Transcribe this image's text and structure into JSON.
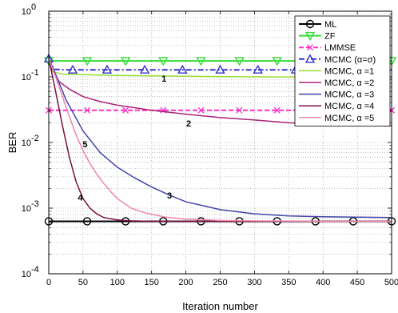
{
  "chart_data": {
    "type": "line",
    "title": "",
    "xlabel": "Iteration number",
    "ylabel": "BER",
    "xlim": [
      0,
      500
    ],
    "ylim": [
      0.0001,
      1
    ],
    "yscale": "log",
    "grid": true,
    "legend_position": "top-right",
    "x_ticks": [
      0,
      50,
      100,
      150,
      200,
      250,
      300,
      350,
      400,
      450,
      500
    ],
    "x_tick_labels": [
      "0",
      "50",
      "100",
      "150",
      "200",
      "250",
      "300",
      "350",
      "400",
      "450",
      "500"
    ],
    "y_ticks": [
      0.0001,
      0.001,
      0.01,
      0.1,
      1
    ],
    "y_tick_labels": [
      {
        "base": "10",
        "exp": "-4"
      },
      {
        "base": "10",
        "exp": "-3"
      },
      {
        "base": "10",
        "exp": "-2"
      },
      {
        "base": "10",
        "exp": "-1"
      },
      {
        "base": "10",
        "exp": "0"
      }
    ],
    "series": [
      {
        "name": "ML",
        "color": "#000000",
        "marker": "circle",
        "dash": "solid",
        "x": [
          0,
          500
        ],
        "y": [
          0.00063,
          0.00063
        ],
        "marker_x": [
          0,
          56,
          112,
          167,
          222,
          278,
          333,
          389,
          444,
          500
        ]
      },
      {
        "name": "ZF",
        "color": "#33dd33",
        "marker": "triangle-down",
        "dash": "solid",
        "x": [
          0,
          500
        ],
        "y": [
          0.175,
          0.175
        ],
        "marker_x": [
          0,
          56,
          112,
          167,
          222,
          278,
          333,
          389,
          444,
          500
        ]
      },
      {
        "name": "LMMSE",
        "color": "#ff33cc",
        "marker": "x",
        "dash": "dashed",
        "x": [
          0,
          500
        ],
        "y": [
          0.031,
          0.031
        ],
        "marker_x": [
          0,
          56,
          112,
          167,
          222,
          278,
          333,
          389,
          444,
          500
        ]
      },
      {
        "name": "MCMC (α=σ)",
        "color": "#3333cc",
        "marker": "triangle-up",
        "dash": "dashdot",
        "x": [
          0,
          8,
          25,
          500
        ],
        "y": [
          0.19,
          0.13,
          0.128,
          0.128
        ],
        "marker_x": [
          0,
          35,
          85,
          140,
          195,
          250,
          305,
          360,
          415,
          470
        ]
      },
      {
        "name": "MCMC, α =1",
        "color": "#99dd33",
        "marker": "none",
        "dash": "solid",
        "x": [
          0,
          5,
          20,
          50,
          100,
          200,
          300,
          400,
          500
        ],
        "y": [
          0.19,
          0.12,
          0.11,
          0.108,
          0.105,
          0.102,
          0.1,
          0.099,
          0.098
        ]
      },
      {
        "name": "MCMC, α =2",
        "color": "#aa2277",
        "marker": "none",
        "dash": "solid",
        "x": [
          0,
          5,
          15,
          30,
          50,
          75,
          100,
          150,
          200,
          250,
          300,
          350,
          400,
          450,
          500
        ],
        "y": [
          0.19,
          0.13,
          0.085,
          0.065,
          0.05,
          0.042,
          0.037,
          0.031,
          0.027,
          0.024,
          0.022,
          0.02,
          0.019,
          0.0185,
          0.018
        ]
      },
      {
        "name": "MCMC, α =3",
        "color": "#4444aa",
        "marker": "none",
        "dash": "solid",
        "x": [
          0,
          10,
          25,
          50,
          75,
          100,
          125,
          150,
          175,
          200,
          250,
          300,
          350,
          400,
          450,
          500
        ],
        "y": [
          0.19,
          0.11,
          0.045,
          0.015,
          0.007,
          0.0042,
          0.0029,
          0.0021,
          0.0016,
          0.00125,
          0.00095,
          0.00082,
          0.00076,
          0.00074,
          0.00073,
          0.00072
        ]
      },
      {
        "name": "MCMC, α =4",
        "color": "#771144",
        "marker": "none",
        "dash": "solid",
        "x": [
          0,
          10,
          20,
          30,
          40,
          50,
          60,
          70,
          80,
          100,
          120,
          150,
          200,
          500
        ],
        "y": [
          0.19,
          0.06,
          0.018,
          0.006,
          0.0025,
          0.0014,
          0.001,
          0.00082,
          0.00072,
          0.00066,
          0.00064,
          0.00063,
          0.00063,
          0.00063
        ]
      },
      {
        "name": "MCMC, α =5",
        "color": "#ee88aa",
        "marker": "none",
        "dash": "solid",
        "x": [
          0,
          10,
          20,
          30,
          40,
          50,
          60,
          70,
          80,
          90,
          100,
          120,
          140,
          170,
          200,
          250,
          300,
          400,
          500
        ],
        "y": [
          0.19,
          0.1,
          0.05,
          0.025,
          0.013,
          0.0075,
          0.0048,
          0.0033,
          0.0024,
          0.0018,
          0.0014,
          0.001,
          0.00085,
          0.00073,
          0.00068,
          0.00065,
          0.00064,
          0.00063,
          0.00063
        ]
      }
    ],
    "annotations": [
      {
        "text": "1",
        "x": 168,
        "y": 0.085
      },
      {
        "text": "2",
        "x": 204,
        "y": 0.0175
      },
      {
        "text": "3",
        "x": 176,
        "y": 0.0014
      },
      {
        "text": "4",
        "x": 46,
        "y": 0.0013
      },
      {
        "text": "5",
        "x": 53,
        "y": 0.0085
      }
    ]
  }
}
